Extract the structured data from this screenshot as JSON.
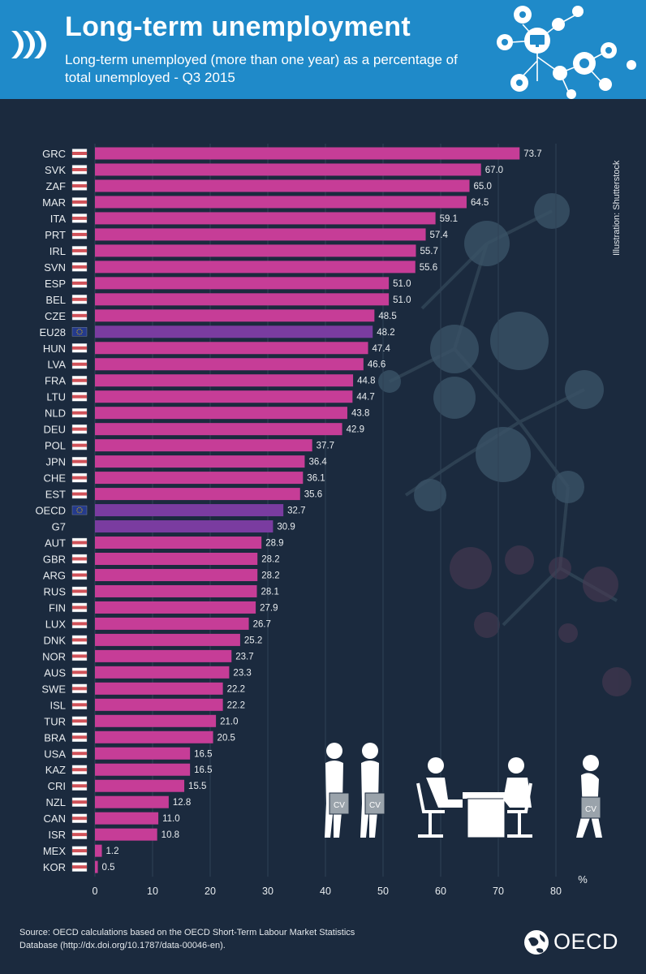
{
  "header": {
    "title": "Long-term unemployment",
    "subtitle": "Long-term unemployed (more than one year) as a percentage of total unemployed - Q3 2015",
    "logo_icon": "oecd-chevrons-icon",
    "decorative_icon": "network-icons-tree-icon"
  },
  "colors": {
    "header_bg": "#1f8ac9",
    "chart_bg": "#1b2a3e",
    "bar": "#c63d97",
    "aggregate_bar": "#7a3ca0",
    "text": "#e8ecef"
  },
  "credit": "Illustration: Shutterstock",
  "source": "Source: OECD calculations based on the OECD Short-Term Labour Market Statistics Database (http://dx.doi.org/10.1787/data-00046-en).",
  "brand": "OECD",
  "illustration": {
    "cv_label": "CV",
    "icon": "job-interview-queue-illustration"
  },
  "chart_data": {
    "type": "bar",
    "orientation": "horizontal",
    "categories": [
      "GRC",
      "SVK",
      "ZAF",
      "MAR",
      "ITA",
      "PRT",
      "IRL",
      "SVN",
      "ESP",
      "BEL",
      "CZE",
      "EU28",
      "HUN",
      "LVA",
      "FRA",
      "LTU",
      "NLD",
      "DEU",
      "POL",
      "JPN",
      "CHE",
      "EST",
      "OECD",
      "G7",
      "AUT",
      "GBR",
      "ARG",
      "RUS",
      "FIN",
      "LUX",
      "DNK",
      "NOR",
      "AUS",
      "SWE",
      "ISL",
      "TUR",
      "BRA",
      "USA",
      "KAZ",
      "CRI",
      "NZL",
      "CAN",
      "ISR",
      "MEX",
      "KOR"
    ],
    "values": [
      73.7,
      67.0,
      65.0,
      64.5,
      59.1,
      57.4,
      55.7,
      55.6,
      51.0,
      51.0,
      48.5,
      48.2,
      47.4,
      46.6,
      44.8,
      44.7,
      43.8,
      42.9,
      37.7,
      36.4,
      36.1,
      35.6,
      32.7,
      30.9,
      28.9,
      28.2,
      28.2,
      28.1,
      27.9,
      26.7,
      25.2,
      23.7,
      23.3,
      22.2,
      22.2,
      21.0,
      20.5,
      16.5,
      16.5,
      15.5,
      12.8,
      11.0,
      10.8,
      1.2,
      0.5
    ],
    "value_labels": [
      "73.7",
      "67.0",
      "65.0",
      "64.5",
      "59.1",
      "57.4",
      "55.7",
      "55.6",
      "51.0",
      "51.0",
      "48.5",
      "48.2",
      "47.4",
      "46.6",
      "44.8",
      "44.7",
      "43.8",
      "42.9",
      "37.7",
      "36.4",
      "36.1",
      "35.6",
      "32.7",
      "30.9",
      "28.9",
      "28.2",
      "28.2",
      "28.1",
      "27.9",
      "26.7",
      "25.2",
      "23.7",
      "23.3",
      "22.2",
      "22.2",
      "21.0",
      "20.5",
      "16.5",
      "16.5",
      "15.5",
      "12.8",
      "11.0",
      "10.8",
      "1.2",
      "0.5"
    ],
    "highlighted": [
      "EU28",
      "OECD",
      "G7"
    ],
    "xlim": [
      0,
      80
    ],
    "xticks": [
      0,
      10,
      20,
      30,
      40,
      50,
      60,
      70,
      80
    ],
    "xlabel": "%",
    "ylabel": "",
    "grid": true,
    "legend": "none"
  }
}
